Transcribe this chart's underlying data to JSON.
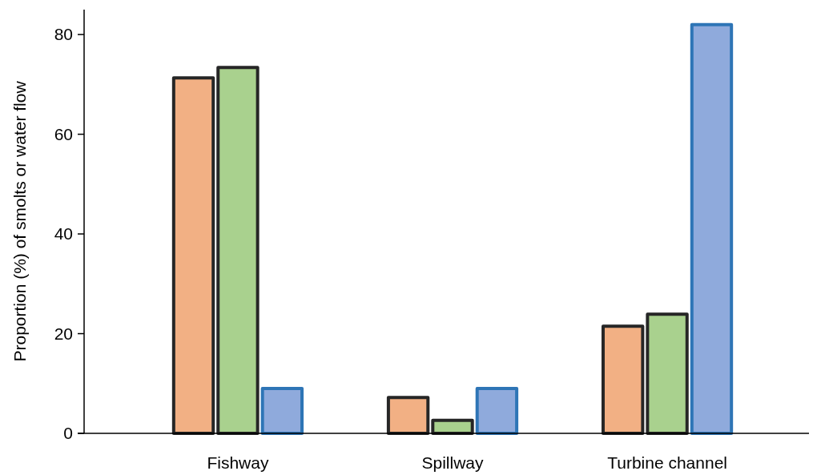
{
  "chart_data": {
    "type": "bar",
    "ylabel": "Proportion (%) of smolts or water flow",
    "categories": [
      "Fishway",
      "Spillway",
      "Turbine channel"
    ],
    "series": [
      {
        "color": "#f2b084",
        "values": [
          71.3,
          7.2,
          21.5
        ]
      },
      {
        "color": "#a9d18e",
        "values": [
          73.4,
          2.6,
          23.9
        ]
      },
      {
        "color": "#8faadc",
        "values": [
          9.0,
          9.0,
          82.0
        ]
      }
    ],
    "ylim": [
      0,
      85
    ],
    "yticks": [
      0,
      20,
      40,
      60,
      80
    ],
    "grid": false
  }
}
